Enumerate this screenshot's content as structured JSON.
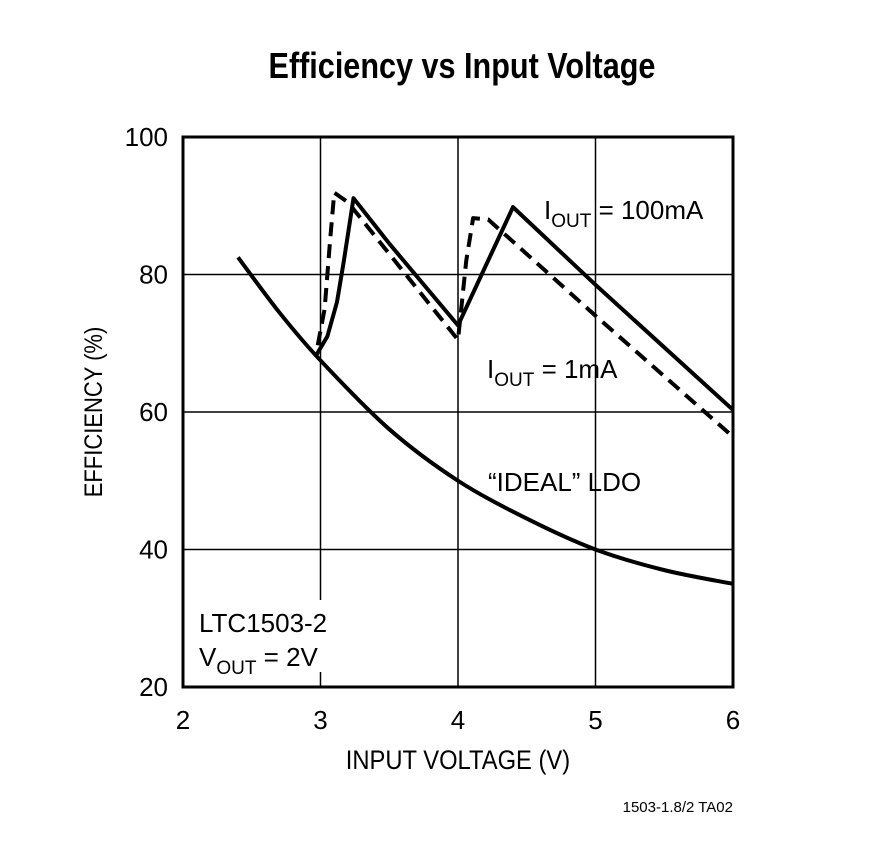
{
  "chart_data": {
    "type": "line",
    "title": "Efficiency vs Input Voltage",
    "xlabel": "INPUT VOLTAGE (V)",
    "ylabel": "EFFICIENCY (%)",
    "xlim": [
      2,
      6
    ],
    "ylim": [
      20,
      100
    ],
    "xticks": [
      "2",
      "3",
      "4",
      "5",
      "6"
    ],
    "yticks": [
      "20",
      "40",
      "60",
      "80",
      "100"
    ],
    "grid": true,
    "series": [
      {
        "name": "I_OUT = 100mA",
        "style": "solid",
        "x": [
          2.97,
          3.05,
          3.12,
          3.17,
          3.24,
          3.5,
          4.0,
          4.4,
          5.0,
          6.0
        ],
        "y": [
          68.3,
          71,
          76,
          82,
          91.1,
          84.5,
          72.6,
          89.8,
          78.5,
          60.3
        ]
      },
      {
        "name": "I_OUT = 1mA",
        "style": "dashed",
        "x": [
          2.98,
          3.03,
          3.07,
          3.1,
          3.2,
          4.0,
          4.06,
          4.11,
          4.22,
          5.0,
          6.0
        ],
        "y": [
          69.7,
          75,
          85,
          91.9,
          90.5,
          70.5,
          82,
          88.2,
          88,
          74,
          56.4
        ]
      },
      {
        "name": "“IDEAL” LDO",
        "style": "solid",
        "x": [
          2.4,
          2.7,
          3.0,
          3.5,
          4.0,
          4.5,
          5.0,
          5.5,
          6.0
        ],
        "y": [
          82.5,
          74.5,
          67.5,
          57.5,
          50,
          44.5,
          40,
          37,
          35
        ]
      }
    ],
    "annotations": {
      "iout100": {
        "main": "I",
        "sub": "OUT",
        "rest": " = 100mA"
      },
      "iout1": {
        "main": "I",
        "sub": "OUT",
        "rest": " = 1mA"
      },
      "ideal": "“IDEAL” LDO",
      "part": "LTC1503-2",
      "vout": {
        "main": "V",
        "sub": "OUT",
        "rest": " = 2V"
      },
      "figure_id": "1503-1.8/2 TA02"
    }
  }
}
